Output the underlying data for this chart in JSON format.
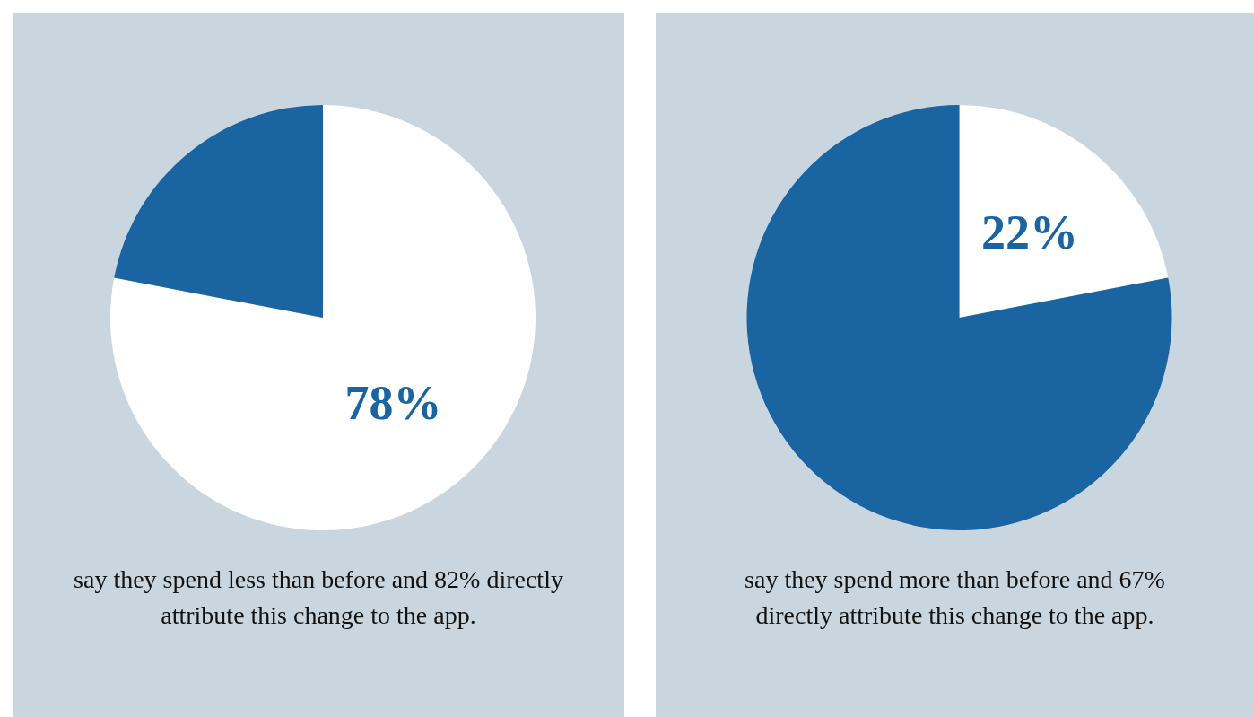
{
  "chart_data": [
    {
      "type": "pie",
      "categories": [
        null,
        null
      ],
      "values": [
        78,
        22
      ],
      "colors": [
        "#ffffff",
        "#1a64a1"
      ],
      "value_labels": [
        "78%",
        null
      ],
      "annotations": [
        "say they spend less than before and 82% directly attribute this change to the app."
      ]
    },
    {
      "type": "pie",
      "categories": [
        null,
        null
      ],
      "values": [
        22,
        78
      ],
      "colors": [
        "#ffffff",
        "#1a64a1"
      ],
      "value_labels": [
        "22%",
        null
      ],
      "annotations": [
        "say they spend more than before and 67% directly attribute this change to the app."
      ]
    }
  ]
}
